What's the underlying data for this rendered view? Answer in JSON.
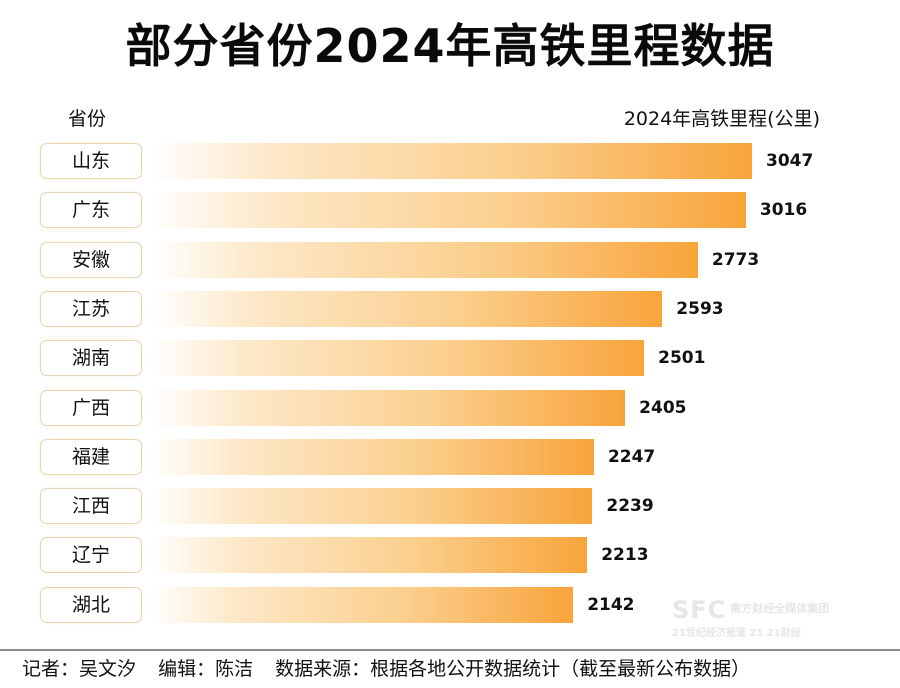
{
  "chart_data": {
    "type": "bar",
    "orientation": "horizontal",
    "title": "部分省份2024年高铁里程数据",
    "xlabel": "2024年高铁里程(公里)",
    "ylabel": "省份",
    "categories": [
      "山东",
      "广东",
      "安徽",
      "江苏",
      "湖南",
      "广西",
      "福建",
      "江西",
      "辽宁",
      "湖北"
    ],
    "values": [
      3047,
      3016,
      2773,
      2593,
      2501,
      2405,
      2247,
      2239,
      2213,
      2142
    ],
    "xlim": [
      0,
      3047
    ],
    "grid": false,
    "data_labels": true
  },
  "header": {
    "title": "部分省份2024年高铁里程数据",
    "col_left": "省份",
    "col_right": "2024年高铁里程(公里)"
  },
  "footer": {
    "reporter": "记者：吴文汐",
    "editor": "编辑：陈洁",
    "source": "数据来源：根据各地公开数据统计（截至最新公布数据）"
  },
  "watermark": {
    "logo": "SFC",
    "org": "南方财经全媒体集团",
    "line2": "21世纪经济报道  21 21财经"
  },
  "colors": {
    "bar_end": "#f8a43a",
    "bar_start": "#ffffff",
    "label_border": "#e6d6b4"
  }
}
